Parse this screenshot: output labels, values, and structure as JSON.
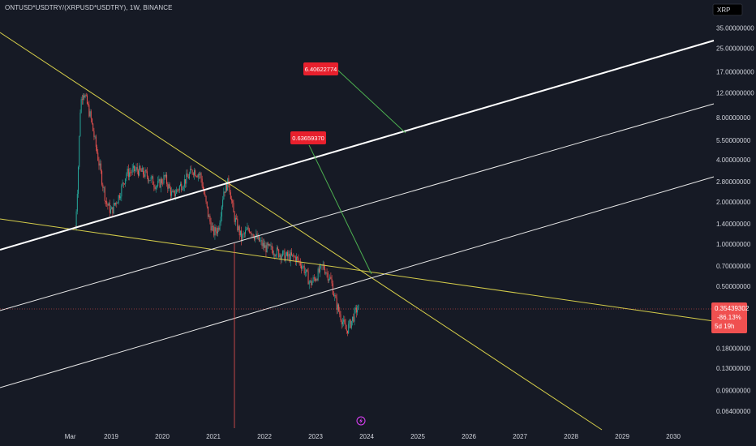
{
  "header": {
    "symbol": "ONTUSD*USDTRY/(XRPUSD*USDTRY), 1W, BINANCE"
  },
  "scale_badge": {
    "label": "XRP"
  },
  "price_tag": {
    "price": "0.35439302",
    "change": "-86.13%",
    "countdown": "5d 19h"
  },
  "annotations": [
    {
      "label": "6.40622774"
    },
    {
      "label": "0.63659370"
    }
  ],
  "colors": {
    "background": "#161a25",
    "up": "#26a69a",
    "down": "#ef5350",
    "trendline_yellow": "#d4cc4a",
    "channel_white": "#ffffff",
    "arrow_green": "#4caf50",
    "label_red": "#e8202d"
  },
  "chart_data": {
    "type": "candlestick",
    "title": "",
    "x_ticks": [
      "Mar",
      "2019",
      "2020",
      "2021",
      "2022",
      "2023",
      "2024",
      "2025",
      "2026",
      "2027",
      "2028",
      "2029",
      "2030"
    ],
    "y_scale": "log",
    "y_ticks": [
      "35.00000000",
      "25.00000000",
      "17.00000000",
      "12.00000000",
      "8.00000000",
      "5.50000000",
      "4.00000000",
      "2.80000000",
      "2.00000000",
      "1.40000000",
      "1.00000000",
      "0.70000000",
      "0.50000000",
      "0.18000000",
      "0.13000000",
      "0.09000000",
      "0.06400000"
    ],
    "price_path": [
      [
        2018.3,
        1.3
      ],
      [
        2018.35,
        3.0
      ],
      [
        2018.4,
        10.0
      ],
      [
        2018.45,
        12.5
      ],
      [
        2018.5,
        11.0
      ],
      [
        2018.6,
        8.0
      ],
      [
        2018.75,
        4.0
      ],
      [
        2018.9,
        2.0
      ],
      [
        2019.0,
        1.7
      ],
      [
        2019.15,
        2.2
      ],
      [
        2019.3,
        3.2
      ],
      [
        2019.5,
        3.4
      ],
      [
        2019.7,
        3.1
      ],
      [
        2019.9,
        2.6
      ],
      [
        2020.05,
        3.0
      ],
      [
        2020.2,
        2.2
      ],
      [
        2020.35,
        2.6
      ],
      [
        2020.5,
        3.0
      ],
      [
        2020.6,
        3.4
      ],
      [
        2020.75,
        3.1
      ],
      [
        2020.9,
        1.6
      ],
      [
        2021.0,
        1.2
      ],
      [
        2021.1,
        1.3
      ],
      [
        2021.2,
        2.4
      ],
      [
        2021.3,
        2.8
      ],
      [
        2021.4,
        1.6
      ],
      [
        2021.55,
        1.1
      ],
      [
        2021.7,
        1.3
      ],
      [
        2021.85,
        1.1
      ],
      [
        2022.0,
        0.95
      ],
      [
        2022.2,
        0.9
      ],
      [
        2022.4,
        0.82
      ],
      [
        2022.6,
        0.8
      ],
      [
        2022.75,
        0.7
      ],
      [
        2022.9,
        0.52
      ],
      [
        2023.0,
        0.58
      ],
      [
        2023.15,
        0.7
      ],
      [
        2023.3,
        0.55
      ],
      [
        2023.4,
        0.38
      ],
      [
        2023.5,
        0.3
      ],
      [
        2023.6,
        0.24
      ],
      [
        2023.7,
        0.28
      ],
      [
        2023.8,
        0.34
      ],
      [
        2023.85,
        0.35
      ]
    ],
    "last_price": 0.35439302,
    "targets": [
      6.40622774,
      0.6365937
    ]
  }
}
